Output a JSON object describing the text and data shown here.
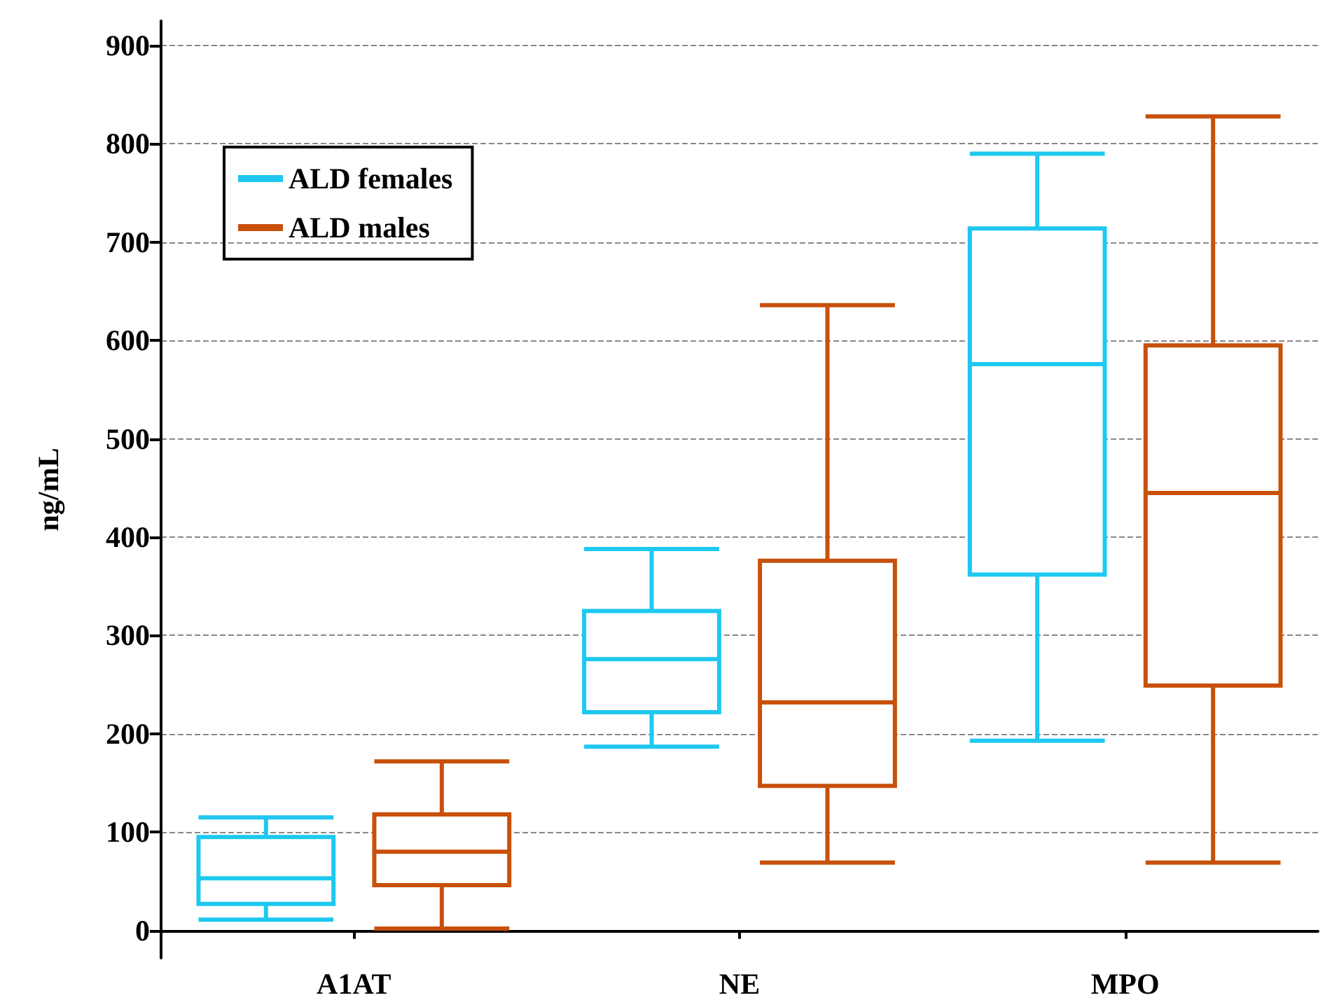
{
  "chart_data": {
    "type": "box",
    "ylabel": "ng/mL",
    "categories": [
      "A1AT",
      "NE",
      "MPO"
    ],
    "series": [
      {
        "name": "ALD females",
        "color": "#1ec8f0",
        "boxes": [
          {
            "low": 11,
            "q1": 27,
            "median": 53,
            "q3": 95,
            "high": 115
          },
          {
            "low": 187,
            "q1": 222,
            "median": 276,
            "q3": 325,
            "high": 388
          },
          {
            "low": 193,
            "q1": 362,
            "median": 576,
            "q3": 714,
            "high": 790
          }
        ]
      },
      {
        "name": "ALD males",
        "color": "#c8500a",
        "boxes": [
          {
            "low": 2,
            "q1": 46,
            "median": 80,
            "q3": 118,
            "high": 172
          },
          {
            "low": 69,
            "q1": 147,
            "median": 232,
            "q3": 376,
            "high": 636
          },
          {
            "low": 69,
            "q1": 249,
            "median": 445,
            "q3": 595,
            "high": 828
          }
        ]
      }
    ],
    "ylim": [
      -28,
      925
    ],
    "yticks": [
      0,
      100,
      200,
      300,
      400,
      500,
      600,
      700,
      800,
      900
    ],
    "grid": "y",
    "legend": "top left"
  }
}
